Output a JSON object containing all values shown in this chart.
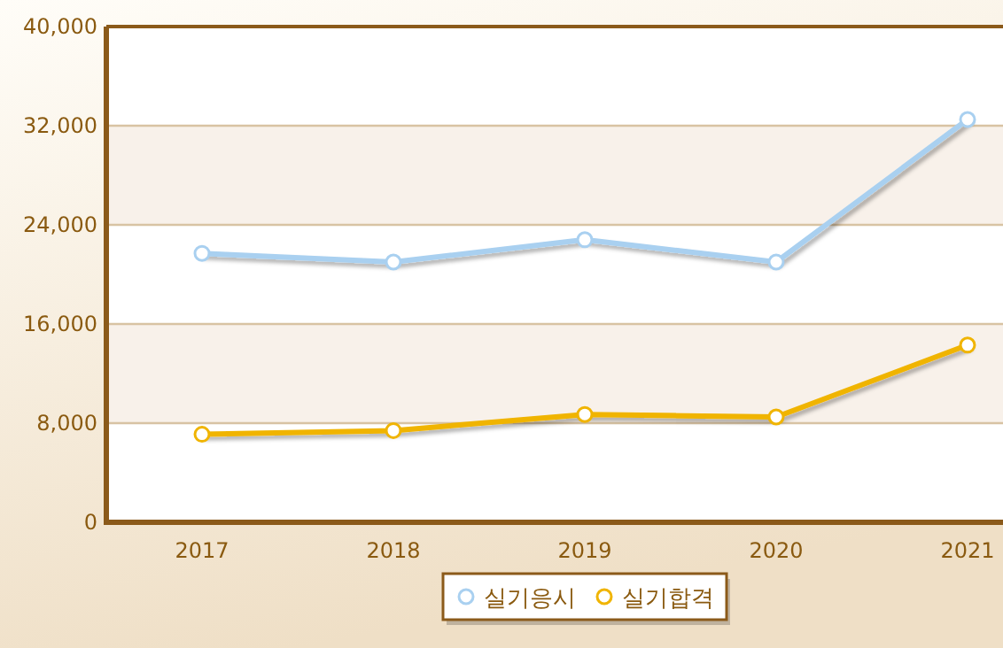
{
  "chart_data": {
    "type": "line",
    "categories": [
      "2017",
      "2018",
      "2019",
      "2020",
      "2021"
    ],
    "series": [
      {
        "name": "실기응시",
        "color": "#a9d0f0",
        "values": [
          21700,
          21000,
          22800,
          21000,
          32500
        ]
      },
      {
        "name": "실기합격",
        "color": "#f0b400",
        "values": [
          7100,
          7400,
          8700,
          8500,
          14300
        ]
      }
    ],
    "ylim": [
      0,
      40000
    ],
    "yticks": [
      {
        "value": 0,
        "label": "0"
      },
      {
        "value": 8000,
        "label": "8,000"
      },
      {
        "value": 16000,
        "label": "16,000"
      },
      {
        "value": 24000,
        "label": "24,000"
      },
      {
        "value": 32000,
        "label": "32,000"
      },
      {
        "value": 40000,
        "label": "40,000"
      }
    ],
    "grid": "y",
    "legend": "bottom",
    "marker": "circle",
    "line_style": "solid"
  }
}
